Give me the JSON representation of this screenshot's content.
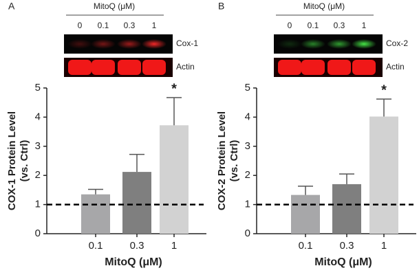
{
  "chart_data": [
    {
      "type": "bar",
      "panel": "A",
      "blot": {
        "title": "MitoQ (μM)",
        "lanes": [
          "0",
          "0.1",
          "0.3",
          "1"
        ],
        "rows": [
          "Cox-1",
          "Actin"
        ]
      },
      "y_label": [
        "COX-1  Protein Level",
        "(vs. Ctrl)"
      ],
      "x_label": "MitoQ (μM)",
      "categories": [
        "0.1",
        "0.3",
        "1"
      ],
      "values": [
        1.35,
        2.12,
        3.72
      ],
      "errors": [
        0.17,
        0.6,
        0.95
      ],
      "colors": [
        "#a7a7a9",
        "#7f7f7f",
        "#d2d2d2"
      ],
      "reference_line": 1,
      "annotations": [
        {
          "text": "*",
          "category": "1"
        }
      ],
      "ylim": [
        0,
        5
      ],
      "yticks": [
        0,
        1,
        2,
        3,
        4,
        5
      ]
    },
    {
      "type": "bar",
      "panel": "B",
      "blot": {
        "title": "MitoQ (μM)",
        "lanes": [
          "0",
          "0.1",
          "0.3",
          "1"
        ],
        "rows": [
          "Cox-2",
          "Actin"
        ]
      },
      "y_label": [
        "COX-2 Protein Level",
        "(vs. Ctrl)"
      ],
      "x_label": "MitoQ (μM)",
      "categories": [
        "0.1",
        "0.3",
        "1"
      ],
      "values": [
        1.33,
        1.7,
        4.02
      ],
      "errors": [
        0.3,
        0.35,
        0.6
      ],
      "colors": [
        "#a7a7a9",
        "#7f7f7f",
        "#d2d2d2"
      ],
      "reference_line": 1,
      "annotations": [
        {
          "text": "*",
          "category": "1"
        }
      ],
      "ylim": [
        0,
        5
      ],
      "yticks": [
        0,
        1,
        2,
        3,
        4,
        5
      ]
    }
  ]
}
